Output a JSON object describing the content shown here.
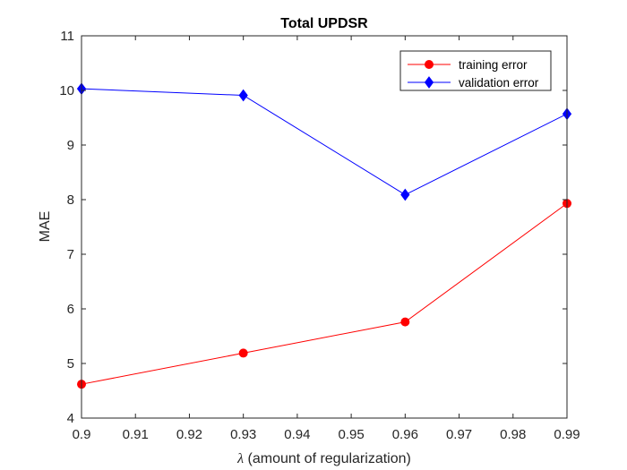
{
  "chart_data": {
    "type": "line",
    "title": "Total UPDSR",
    "xlabel_symbol": "λ",
    "xlabel_text": " (amount of regularization)",
    "ylabel": "MAE",
    "xlim": [
      0.9,
      0.99
    ],
    "ylim": [
      4,
      11
    ],
    "xticks": [
      0.9,
      0.91,
      0.92,
      0.93,
      0.94,
      0.95,
      0.96,
      0.97,
      0.98,
      0.99
    ],
    "xtick_labels": [
      "0.9",
      "0.91",
      "0.92",
      "0.93",
      "0.94",
      "0.95",
      "0.96",
      "0.97",
      "0.98",
      "0.99"
    ],
    "yticks": [
      4,
      5,
      6,
      7,
      8,
      9,
      10,
      11
    ],
    "ytick_labels": [
      "4",
      "5",
      "6",
      "7",
      "8",
      "9",
      "10",
      "11"
    ],
    "grid": false,
    "legend_position": "top-right",
    "series": [
      {
        "name": "training error",
        "color": "#ff0000",
        "marker": "circle",
        "x": [
          0.9,
          0.93,
          0.96,
          0.99
        ],
        "y": [
          4.62,
          5.19,
          5.76,
          7.93
        ]
      },
      {
        "name": "validation error",
        "color": "#0000ff",
        "marker": "diamond",
        "x": [
          0.9,
          0.93,
          0.96,
          0.99
        ],
        "y": [
          10.03,
          9.91,
          8.09,
          9.57
        ]
      }
    ]
  }
}
